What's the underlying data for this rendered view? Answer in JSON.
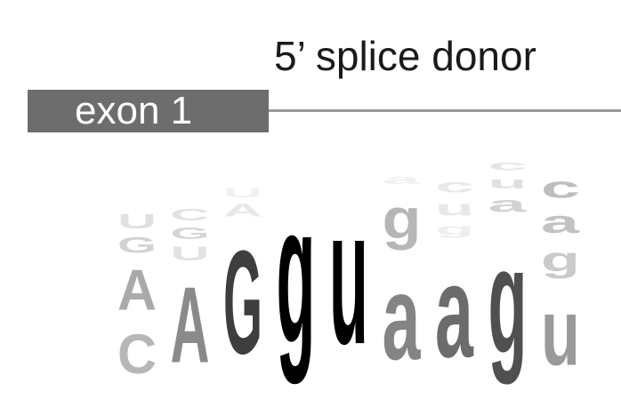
{
  "title": "5’ splice donor",
  "exon_label": "exon 1",
  "colors": {
    "exon_box": "#6d6d6d",
    "intron_line": "#9a9a9a"
  },
  "logo": {
    "positions": [
      {
        "letters": [
          {
            "char": "U",
            "height": 26,
            "color": "#e0e0e0"
          },
          {
            "char": "G",
            "height": 28,
            "color": "#d2d2d2"
          },
          {
            "char": "A",
            "height": 73,
            "color": "#aaaaaa"
          },
          {
            "char": "C",
            "height": 71,
            "color": "#b6b6b6"
          }
        ]
      },
      {
        "letters": [
          {
            "char": "C",
            "height": 21,
            "color": "#e2e2e2"
          },
          {
            "char": "G",
            "height": 21,
            "color": "#d6d6d6"
          },
          {
            "char": "U",
            "height": 25,
            "color": "#e2e2e2"
          },
          {
            "char": "A",
            "height": 136,
            "color": "#8a8a8a"
          }
        ]
      },
      {
        "letters": [
          {
            "char": "U",
            "height": 16,
            "color": "#f0f0f0"
          },
          {
            "char": "A",
            "height": 23,
            "color": "#e8e8e8"
          },
          {
            "char": "G",
            "height": 186,
            "color": "#3e3e3e"
          }
        ]
      },
      {
        "letters": [
          {
            "char": "g",
            "height": 250,
            "color": "#000000"
          }
        ]
      },
      {
        "letters": [
          {
            "char": "u",
            "height": 244,
            "color": "#000000"
          }
        ]
      },
      {
        "letters": [
          {
            "char": "a",
            "height": 16,
            "color": "#f0f0f0"
          },
          {
            "char": "g",
            "height": 72,
            "color": "#b6b6b6"
          },
          {
            "char": "a",
            "height": 152,
            "color": "#848484"
          }
        ]
      },
      {
        "letters": [
          {
            "char": "c",
            "height": 24,
            "color": "#e8e8e8"
          },
          {
            "char": "u",
            "height": 27,
            "color": "#e8e8e8"
          },
          {
            "char": "g",
            "height": 20,
            "color": "#eeeeee"
          },
          {
            "char": "a",
            "height": 166,
            "color": "#6c6c6c"
          }
        ]
      },
      {
        "letters": [
          {
            "char": "c",
            "height": 18,
            "color": "#e4e4e4"
          },
          {
            "char": "u",
            "height": 21,
            "color": "#e0e0e0"
          },
          {
            "char": "a",
            "height": 28,
            "color": "#d2d2d2"
          },
          {
            "char": "g",
            "height": 190,
            "color": "#505050"
          }
        ]
      },
      {
        "letters": [
          {
            "char": "c",
            "height": 38,
            "color": "#bebebe"
          },
          {
            "char": "a",
            "height": 40,
            "color": "#c2c2c2"
          },
          {
            "char": "g",
            "height": 44,
            "color": "#cacaca"
          },
          {
            "char": "u",
            "height": 120,
            "color": "#9a9a9a"
          }
        ]
      }
    ]
  }
}
